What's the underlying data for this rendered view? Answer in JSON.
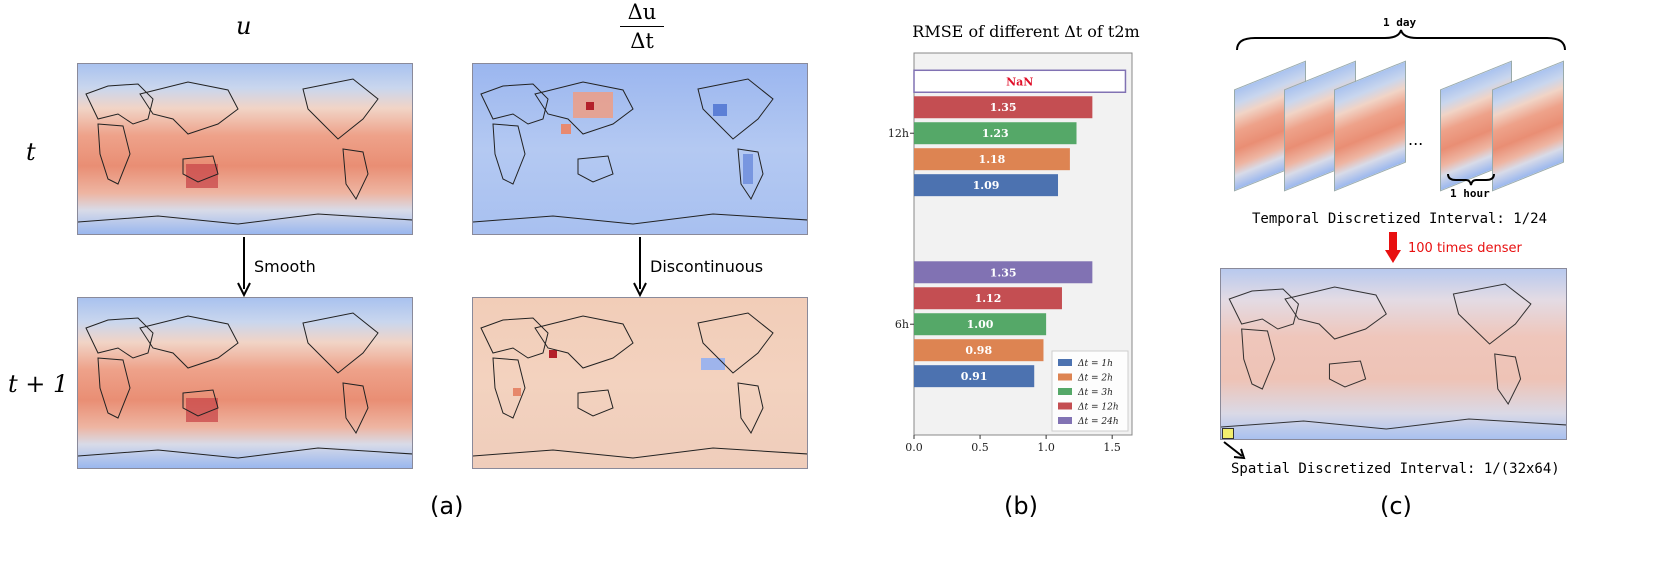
{
  "panel_a": {
    "col1_header": "u",
    "col2_header_num": "Δu",
    "col2_header_den": "Δt",
    "row1_label": "t",
    "row2_label": "t + 1",
    "arrow1_label": "Smooth",
    "arrow2_label": "Discontinuous",
    "caption": "(a)"
  },
  "panel_b": {
    "caption": "(b)",
    "nan_label": "NaN"
  },
  "panel_c": {
    "day_label": "1 day",
    "hour_label": "1 hour",
    "ellipsis": "...",
    "temporal_text": "Temporal Discretized Interval: 1/24",
    "denser_text": "100 times denser",
    "spatial_text": "Spatial Discretized Interval: 1/(32x64)",
    "caption": "(c)"
  },
  "colors": {
    "dt1": "#4c72b0",
    "dt2": "#dd8452",
    "dt3": "#55a868",
    "dt12": "#c44e52",
    "dt24": "#8172b3",
    "nan_text": "#e0102a",
    "red_arrow": "#e81010"
  },
  "chart_data": {
    "type": "bar",
    "orientation": "horizontal",
    "title": "RMSE of different Δt of t2m",
    "categories": [
      "6h",
      "12h"
    ],
    "series": [
      {
        "name": "Δt = 1h",
        "values": [
          0.91,
          1.09
        ],
        "value_labels": [
          "0.91",
          "1.09"
        ]
      },
      {
        "name": "Δt = 2h",
        "values": [
          0.98,
          1.18
        ],
        "value_labels": [
          "0.98",
          "1.18"
        ]
      },
      {
        "name": "Δt = 3h",
        "values": [
          1.0,
          1.23
        ],
        "value_labels": [
          "1.00",
          "1.23"
        ]
      },
      {
        "name": "Δt = 12h",
        "values": [
          1.12,
          1.35
        ],
        "value_labels": [
          "1.12",
          "1.35"
        ]
      },
      {
        "name": "Δt = 24h",
        "values": [
          1.35,
          null
        ],
        "value_labels": [
          "1.35",
          "NaN"
        ]
      }
    ],
    "xlim": [
      0,
      1.65
    ],
    "xticks": [
      "0.0",
      "0.5",
      "1.0",
      "1.5"
    ],
    "xtick_values": [
      0,
      0.5,
      1.0,
      1.5
    ],
    "legend_position": "lower-right",
    "grid": false
  }
}
